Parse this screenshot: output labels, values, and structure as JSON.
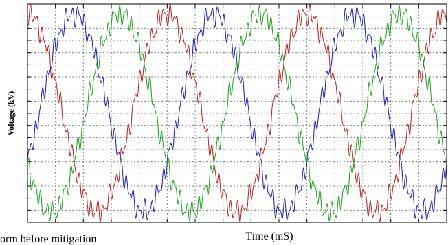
{
  "caption": "orm before mitigation",
  "chart_data": {
    "type": "line",
    "title": "",
    "xlabel": "Time (mS)",
    "ylabel": "Voltage (kV)",
    "grid": true,
    "legend": "none",
    "x_ticks_labeled": false,
    "y_ticks_labeled": false,
    "xlim": [
      0,
      60
    ],
    "ylim": [
      -1.1,
      1.1
    ],
    "x_grid_count": 15,
    "y_grid_count": 18,
    "fundamental_period": 20,
    "series": [
      {
        "color": "#b22222",
        "shape": "sinusoid with high-frequency ripple",
        "amplitude": 1.0,
        "phase_deg": 90,
        "ripple_fraction": 0.07
      },
      {
        "color": "#1f1faa",
        "shape": "sinusoid with high-frequency ripple",
        "amplitude": 1.0,
        "phase_deg": -30,
        "ripple_fraction": 0.07
      },
      {
        "color": "#1e9e1e",
        "shape": "sinusoid with high-frequency ripple",
        "amplitude": 1.0,
        "phase_deg": 210,
        "ripple_fraction": 0.07
      }
    ]
  }
}
